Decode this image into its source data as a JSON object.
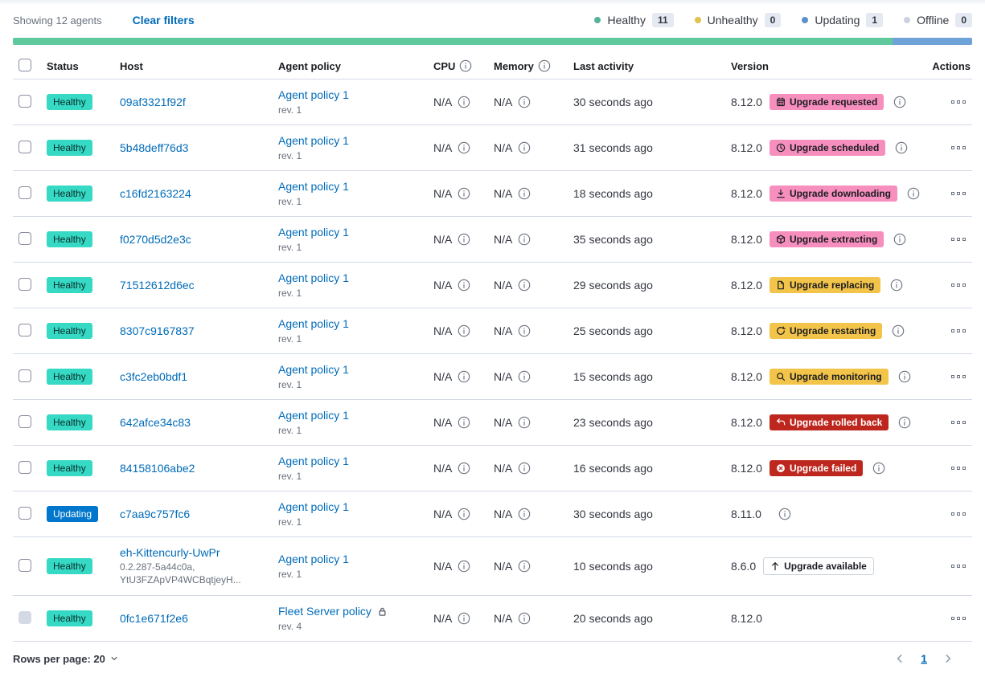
{
  "theme": {
    "success": "#35D9C4",
    "primary": "#0077CC",
    "accent": "#F68FBE",
    "warning": "#F3C44A",
    "danger": "#BD271E",
    "link": "#006BB8",
    "bar_healthy": "#5FC89C",
    "bar_updating": "#6FA3D8"
  },
  "toolbar": {
    "showing": "Showing 12 agents",
    "clear_filters": "Clear filters"
  },
  "legend": {
    "items": [
      {
        "label": "Healthy",
        "count": "11",
        "color": "#54B399"
      },
      {
        "label": "Unhealthy",
        "count": "0",
        "color": "#DFC34C"
      },
      {
        "label": "Updating",
        "count": "1",
        "color": "#5992C8"
      },
      {
        "label": "Offline",
        "count": "0",
        "color": "#CBD3E0"
      }
    ]
  },
  "status_bar": {
    "segments": [
      {
        "name": "healthy",
        "weight": 11,
        "color": "#5FC89C"
      },
      {
        "name": "updating",
        "weight": 1,
        "color": "#6FA3D8"
      }
    ]
  },
  "table": {
    "headers": {
      "status": "Status",
      "host": "Host",
      "policy": "Agent policy",
      "cpu": "CPU",
      "memory": "Memory",
      "last_activity": "Last activity",
      "version": "Version",
      "actions": "Actions"
    },
    "rows": [
      {
        "status": {
          "label": "Healthy",
          "kind": "success"
        },
        "host": "09af3321f92f",
        "host_sub": [],
        "policy": {
          "name": "Agent policy 1",
          "rev": "rev. 1",
          "lock": false
        },
        "cpu": "N/A",
        "memory": "N/A",
        "last_activity": "30 seconds ago",
        "version": "8.12.0",
        "version_info": false,
        "upgrade": {
          "label": "Upgrade requested",
          "kind": "accent",
          "icon": "calendar-icon"
        },
        "upgrade_info": true,
        "checkbox_disabled": false
      },
      {
        "status": {
          "label": "Healthy",
          "kind": "success"
        },
        "host": "5b48deff76d3",
        "host_sub": [],
        "policy": {
          "name": "Agent policy 1",
          "rev": "rev. 1",
          "lock": false
        },
        "cpu": "N/A",
        "memory": "N/A",
        "last_activity": "31 seconds ago",
        "version": "8.12.0",
        "version_info": false,
        "upgrade": {
          "label": "Upgrade scheduled",
          "kind": "accent",
          "icon": "clock-icon"
        },
        "upgrade_info": true,
        "checkbox_disabled": false
      },
      {
        "status": {
          "label": "Healthy",
          "kind": "success"
        },
        "host": "c16fd2163224",
        "host_sub": [],
        "policy": {
          "name": "Agent policy 1",
          "rev": "rev. 1",
          "lock": false
        },
        "cpu": "N/A",
        "memory": "N/A",
        "last_activity": "18 seconds ago",
        "version": "8.12.0",
        "version_info": false,
        "upgrade": {
          "label": "Upgrade downloading",
          "kind": "accent",
          "icon": "download-icon"
        },
        "upgrade_info": true,
        "checkbox_disabled": false
      },
      {
        "status": {
          "label": "Healthy",
          "kind": "success"
        },
        "host": "f0270d5d2e3c",
        "host_sub": [],
        "policy": {
          "name": "Agent policy 1",
          "rev": "rev. 1",
          "lock": false
        },
        "cpu": "N/A",
        "memory": "N/A",
        "last_activity": "35 seconds ago",
        "version": "8.12.0",
        "version_info": false,
        "upgrade": {
          "label": "Upgrade extracting",
          "kind": "accent",
          "icon": "package-icon"
        },
        "upgrade_info": true,
        "checkbox_disabled": false
      },
      {
        "status": {
          "label": "Healthy",
          "kind": "success"
        },
        "host": "71512612d6ec",
        "host_sub": [],
        "policy": {
          "name": "Agent policy 1",
          "rev": "rev. 1",
          "lock": false
        },
        "cpu": "N/A",
        "memory": "N/A",
        "last_activity": "29 seconds ago",
        "version": "8.12.0",
        "version_info": false,
        "upgrade": {
          "label": "Upgrade replacing",
          "kind": "warning",
          "icon": "document-icon"
        },
        "upgrade_info": true,
        "checkbox_disabled": false
      },
      {
        "status": {
          "label": "Healthy",
          "kind": "success"
        },
        "host": "8307c9167837",
        "host_sub": [],
        "policy": {
          "name": "Agent policy 1",
          "rev": "rev. 1",
          "lock": false
        },
        "cpu": "N/A",
        "memory": "N/A",
        "last_activity": "25 seconds ago",
        "version": "8.12.0",
        "version_info": false,
        "upgrade": {
          "label": "Upgrade restarting",
          "kind": "warning",
          "icon": "refresh-icon"
        },
        "upgrade_info": true,
        "checkbox_disabled": false
      },
      {
        "status": {
          "label": "Healthy",
          "kind": "success"
        },
        "host": "c3fc2eb0bdf1",
        "host_sub": [],
        "policy": {
          "name": "Agent policy 1",
          "rev": "rev. 1",
          "lock": false
        },
        "cpu": "N/A",
        "memory": "N/A",
        "last_activity": "15 seconds ago",
        "version": "8.12.0",
        "version_info": false,
        "upgrade": {
          "label": "Upgrade monitoring",
          "kind": "warning",
          "icon": "inspect-icon"
        },
        "upgrade_info": true,
        "checkbox_disabled": false
      },
      {
        "status": {
          "label": "Healthy",
          "kind": "success"
        },
        "host": "642afce34c83",
        "host_sub": [],
        "policy": {
          "name": "Agent policy 1",
          "rev": "rev. 1",
          "lock": false
        },
        "cpu": "N/A",
        "memory": "N/A",
        "last_activity": "23 seconds ago",
        "version": "8.12.0",
        "version_info": false,
        "upgrade": {
          "label": "Upgrade rolled back",
          "kind": "danger",
          "icon": "return-icon"
        },
        "upgrade_info": true,
        "checkbox_disabled": false
      },
      {
        "status": {
          "label": "Healthy",
          "kind": "success"
        },
        "host": "84158106abe2",
        "host_sub": [],
        "policy": {
          "name": "Agent policy 1",
          "rev": "rev. 1",
          "lock": false
        },
        "cpu": "N/A",
        "memory": "N/A",
        "last_activity": "16 seconds ago",
        "version": "8.12.0",
        "version_info": false,
        "upgrade": {
          "label": "Upgrade failed",
          "kind": "danger",
          "icon": "cross-in-circle-icon"
        },
        "upgrade_info": true,
        "checkbox_disabled": false
      },
      {
        "status": {
          "label": "Updating",
          "kind": "primary"
        },
        "host": "c7aa9c757fc6",
        "host_sub": [],
        "policy": {
          "name": "Agent policy 1",
          "rev": "rev. 1",
          "lock": false
        },
        "cpu": "N/A",
        "memory": "N/A",
        "last_activity": "30 seconds ago",
        "version": "8.11.0",
        "version_info": true,
        "upgrade": null,
        "upgrade_info": false,
        "checkbox_disabled": false
      },
      {
        "status": {
          "label": "Healthy",
          "kind": "success"
        },
        "host": "eh-Kittencurly-UwPr",
        "host_sub": [
          "0.2.287-5a44c0a,",
          "YtU3FZApVP4WCBqtjeyH..."
        ],
        "policy": {
          "name": "Agent policy 1",
          "rev": "rev. 1",
          "lock": false
        },
        "cpu": "N/A",
        "memory": "N/A",
        "last_activity": "10 seconds ago",
        "version": "8.6.0",
        "version_info": false,
        "upgrade": {
          "label": "Upgrade available",
          "kind": "hollow",
          "icon": "arrow-up-icon"
        },
        "upgrade_info": false,
        "checkbox_disabled": false
      },
      {
        "status": {
          "label": "Healthy",
          "kind": "success"
        },
        "host": "0fc1e671f2e6",
        "host_sub": [],
        "policy": {
          "name": "Fleet Server policy",
          "rev": "rev. 4",
          "lock": true
        },
        "cpu": "N/A",
        "memory": "N/A",
        "last_activity": "20 seconds ago",
        "version": "8.12.0",
        "version_info": false,
        "upgrade": null,
        "upgrade_info": false,
        "checkbox_disabled": true
      }
    ]
  },
  "footer": {
    "rows_per_page": "Rows per page: 20",
    "page": "1"
  }
}
